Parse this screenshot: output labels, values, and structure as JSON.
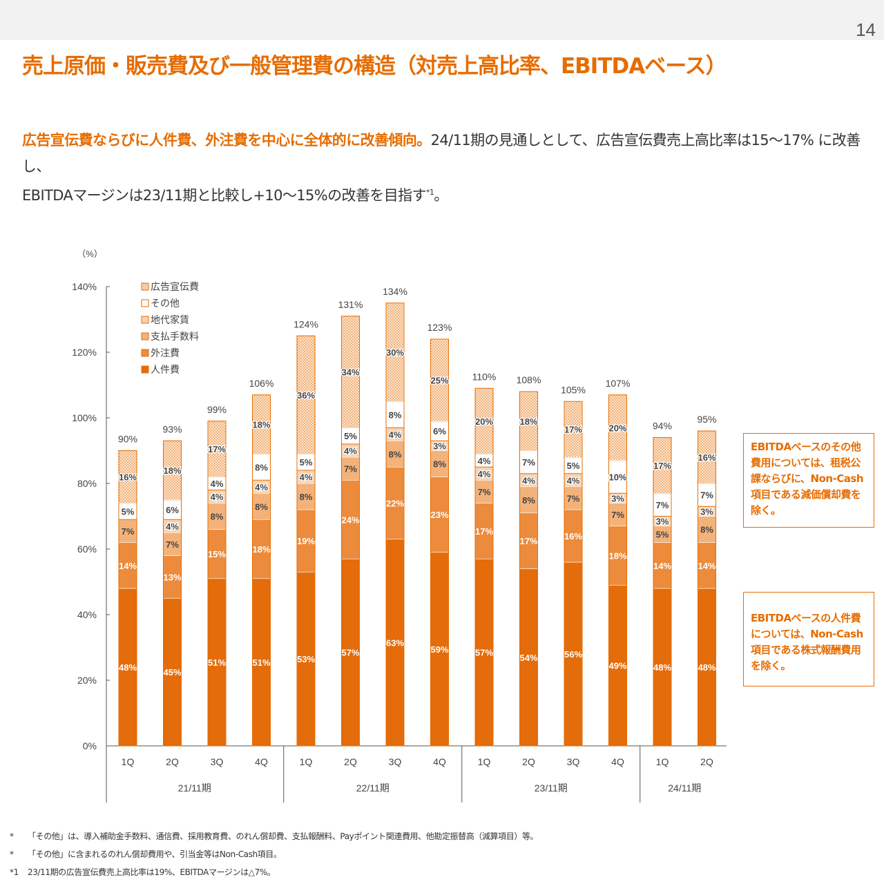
{
  "page_number": "14",
  "title": "売上原価・販売費及び一般管理費の構造（対売上高比率、EBITDAベース）",
  "summary": {
    "highlight": "広告宣伝費ならびに人件費、外注費を中心に全体的に改善傾向。",
    "text_line1": "24/11期の見通しとして、広告宣伝費売上高比率は15～17% に改善し、",
    "text_line2": "EBITDAマージンは23/11期と比較し+10～15%の改善を目指す",
    "footnote_ref": "*1",
    "end": "。"
  },
  "notes": {
    "other_costs": "EBITDAベースのその他費用については、租税公課ならびに、Non-Cash項目である減価償却費を除く。",
    "personnel": "EBITDAベースの人件費については、Non-Cash項目である株式報酬費用を除く。"
  },
  "footnotes": [
    {
      "mark": "*",
      "text": "「その他」は、導入補助金手数料、通信費、採用教育費、のれん償却費、支払報酬料、Payポイント関連費用、他勘定振替高（減算項目）等。"
    },
    {
      "mark": "*",
      "text": "「その他」に含まれるのれん償却費用や、引当金等はNon-Cash項目。"
    },
    {
      "mark": "*1",
      "text": "23/11期の広告宣伝費売上高比率は19%、EBITDAマージンは△7%。"
    }
  ],
  "colors": {
    "accent": "#e66c00",
    "人件費": "#e46c0a",
    "外注費": "#ec8b3c",
    "支払手数料": "#f3b27a",
    "地代家賃": "#f8d3b1",
    "その他": "#ffffff",
    "広告宣伝費": "#fbe4cf"
  },
  "chart_data": {
    "type": "bar",
    "stacked": true,
    "unit_label": "（%）",
    "ylim": [
      0,
      140
    ],
    "yticks": [
      "0%",
      "20%",
      "40%",
      "60%",
      "80%",
      "100%",
      "120%",
      "140%"
    ],
    "ytick_values": [
      0,
      20,
      40,
      60,
      80,
      100,
      120,
      140
    ],
    "categories": [
      "1Q",
      "2Q",
      "3Q",
      "4Q",
      "1Q",
      "2Q",
      "3Q",
      "4Q",
      "1Q",
      "2Q",
      "3Q",
      "4Q",
      "1Q",
      "2Q"
    ],
    "groups": [
      {
        "label": "21/11期",
        "count": 4
      },
      {
        "label": "22/11期",
        "count": 4
      },
      {
        "label": "23/11期",
        "count": 4
      },
      {
        "label": "24/11期",
        "count": 2
      }
    ],
    "totals": [
      90,
      93,
      99,
      106,
      124,
      131,
      134,
      123,
      110,
      108,
      105,
      107,
      94,
      95
    ],
    "series": [
      {
        "name": "人件費",
        "values": [
          48,
          45,
          51,
          51,
          53,
          57,
          63,
          59,
          57,
          54,
          56,
          49,
          48,
          48
        ]
      },
      {
        "name": "外注費",
        "values": [
          14,
          13,
          15,
          18,
          19,
          24,
          22,
          23,
          17,
          17,
          16,
          18,
          14,
          14
        ]
      },
      {
        "name": "支払手数料",
        "values": [
          7,
          7,
          8,
          8,
          8,
          7,
          8,
          8,
          7,
          8,
          7,
          7,
          5,
          8
        ]
      },
      {
        "name": "地代家賃",
        "values": [
          0,
          4,
          4,
          4,
          4,
          4,
          4,
          3,
          4,
          4,
          4,
          3,
          3,
          3
        ]
      },
      {
        "name": "その他",
        "values": [
          5,
          6,
          4,
          8,
          5,
          5,
          8,
          6,
          4,
          7,
          5,
          10,
          7,
          7
        ]
      },
      {
        "name": "広告宣伝費",
        "values": [
          16,
          18,
          17,
          18,
          36,
          34,
          30,
          25,
          20,
          18,
          17,
          20,
          17,
          16
        ]
      }
    ],
    "legend_order": [
      "広告宣伝費",
      "その他",
      "地代家賃",
      "支払手数料",
      "外注費",
      "人件費"
    ],
    "legend_position": "top-left"
  }
}
